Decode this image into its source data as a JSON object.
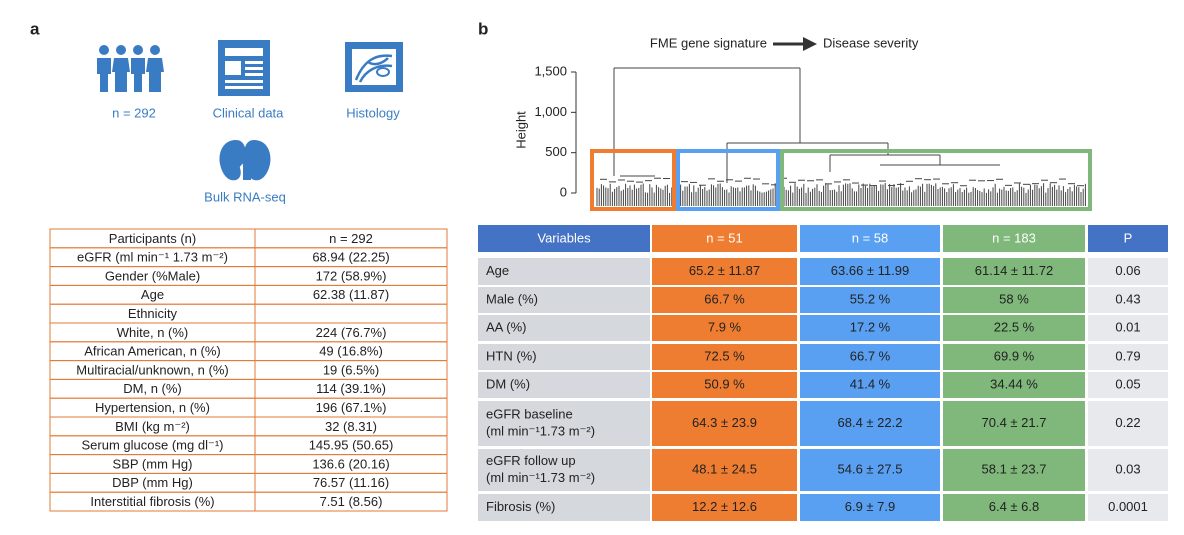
{
  "panel_a": {
    "label": "a",
    "icons": [
      "n = 292",
      "Clinical data",
      "Histology",
      "Bulk RNA-seq"
    ],
    "table": {
      "rows": [
        [
          "Participants (n)",
          "n = 292"
        ],
        [
          "eGFR (ml min⁻¹ 1.73 m⁻²)",
          "68.94 (22.25)"
        ],
        [
          "Gender (%Male)",
          "172 (58.9%)"
        ],
        [
          "Age",
          "62.38 (11.87)"
        ],
        [
          "Ethnicity"
        ],
        [
          "White, n (%)",
          "224 (76.7%)"
        ],
        [
          "African American, n (%)",
          "49 (16.8%)"
        ],
        [
          "Multiracial/unknown, n (%)",
          "19 (6.5%)"
        ],
        [
          "DM, n (%)",
          "114 (39.1%)"
        ],
        [
          "Hypertension, n (%)",
          "196 (67.1%)"
        ],
        [
          "BMI (kg m⁻²)",
          "32 (8.31)"
        ],
        [
          "Serum glucose (mg dl⁻¹)",
          "145.95 (50.65)"
        ],
        [
          "SBP (mm Hg)",
          "136.6 (20.16)"
        ],
        [
          "DBP (mm Hg)",
          "76.57 (11.16)"
        ],
        [
          "Interstitial fibrosis (%)",
          "7.51 (8.56)"
        ]
      ]
    }
  },
  "panel_b": {
    "label": "b",
    "flow": [
      "FME gene signature",
      "Disease severity"
    ],
    "dendrogram": {
      "ylabel": "Height",
      "ylim": [
        0,
        1500
      ],
      "yticks": [
        {
          "value": 1500,
          "label": "1,500"
        },
        {
          "value": 1000,
          "label": "1,000"
        },
        500,
        0
      ],
      "cluster_colors": [
        "#ef7d31",
        "#5aa0f2",
        "#7fb87a"
      ]
    },
    "table": {
      "header": [
        "Variables",
        "n = 51",
        "n = 58",
        "n = 183",
        "P"
      ],
      "rows": [
        {
          "label": [
            "Age"
          ],
          "values": [
            "65.2 ± 11.87",
            "63.66 ± 11.99",
            "61.14 ± 11.72",
            "0.06"
          ]
        },
        {
          "label": [
            "Male (%)"
          ],
          "values": [
            "66.7 %",
            "55.2 %",
            "58 %",
            "0.43"
          ]
        },
        {
          "label": [
            "AA (%)"
          ],
          "values": [
            "7.9 %",
            "17.2 %",
            "22.5 %",
            "0.01"
          ]
        },
        {
          "label": [
            "HTN (%)"
          ],
          "values": [
            "72.5 %",
            "66.7 %",
            "69.9 %",
            "0.79"
          ]
        },
        {
          "label": [
            "DM (%)"
          ],
          "values": [
            "50.9 %",
            "41.4 %",
            "34.44 %",
            "0.05"
          ]
        },
        {
          "label": [
            "eGFR baseline",
            "(ml min⁻¹1.73 m⁻²)"
          ],
          "values": [
            "64.3 ± 23.9",
            "68.4 ± 22.2",
            "70.4 ± 21.7",
            "0.22"
          ]
        },
        {
          "label": [
            "eGFR follow up",
            "(ml min⁻¹1.73 m⁻²)"
          ],
          "values": [
            "48.1 ± 24.5",
            "54.6 ± 27.5",
            "58.1 ± 23.7",
            "0.03"
          ]
        },
        {
          "label": [
            "Fibrosis (%)"
          ],
          "values": [
            "12.2 ± 12.6",
            "6.9 ± 7.9",
            "6.4 ± 6.8",
            "0.0001"
          ]
        }
      ]
    }
  }
}
